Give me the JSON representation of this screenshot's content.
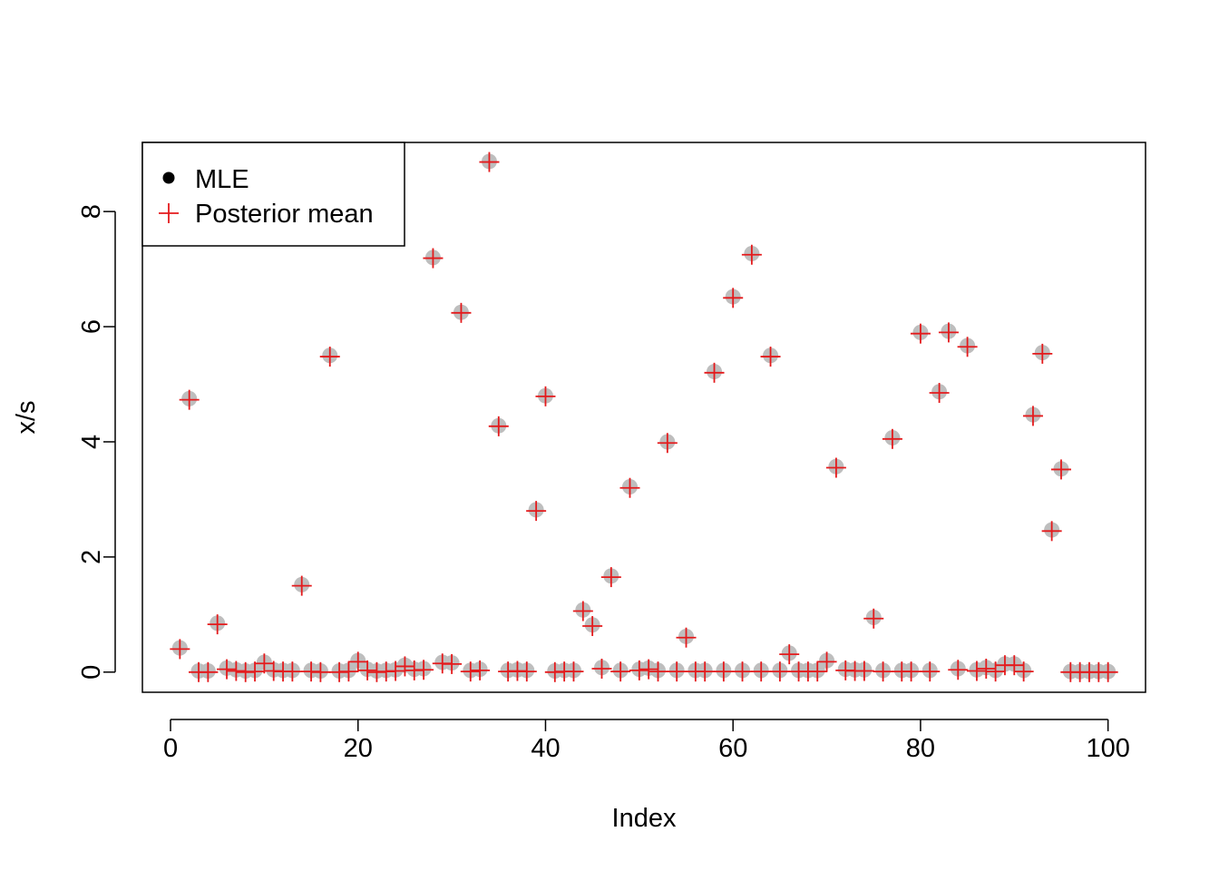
{
  "chart_data": {
    "type": "scatter",
    "xlabel": "Index",
    "ylabel": "x/s",
    "xlim": [
      -3,
      104
    ],
    "ylim": [
      -0.35,
      9.2
    ],
    "x_ticks": [
      0,
      20,
      40,
      60,
      80,
      100
    ],
    "y_ticks": [
      0,
      2,
      4,
      6,
      8
    ],
    "grid": false,
    "legend": {
      "position": "top-left",
      "items": [
        "MLE",
        "Posterior mean"
      ]
    },
    "colors": {
      "mle": "#BEBEBE",
      "posterior": "#E41A1C"
    },
    "x": [
      1,
      2,
      3,
      4,
      5,
      6,
      7,
      8,
      9,
      10,
      11,
      12,
      13,
      14,
      15,
      16,
      17,
      18,
      19,
      20,
      21,
      22,
      23,
      24,
      25,
      26,
      27,
      28,
      29,
      30,
      31,
      32,
      33,
      34,
      35,
      36,
      37,
      38,
      39,
      40,
      41,
      42,
      43,
      44,
      45,
      46,
      47,
      48,
      49,
      50,
      51,
      52,
      53,
      54,
      55,
      56,
      57,
      58,
      59,
      60,
      61,
      62,
      63,
      64,
      65,
      66,
      67,
      68,
      69,
      70,
      71,
      72,
      73,
      74,
      75,
      76,
      77,
      78,
      79,
      80,
      81,
      82,
      83,
      84,
      85,
      86,
      87,
      88,
      89,
      90,
      91,
      92,
      93,
      94,
      95,
      96,
      97,
      98,
      99,
      100
    ],
    "series": [
      {
        "name": "MLE",
        "marker": "filled-circle",
        "values": [
          0.42,
          4.75,
          0.02,
          0.02,
          0.85,
          0.07,
          0.04,
          0.02,
          0.03,
          0.17,
          0.04,
          0.03,
          0.03,
          1.52,
          0.03,
          0.02,
          5.5,
          0.02,
          0.03,
          0.2,
          0.05,
          0.02,
          0.03,
          0.04,
          0.12,
          0.05,
          0.06,
          7.2,
          0.17,
          0.16,
          6.25,
          0.03,
          0.05,
          8.87,
          4.28,
          0.03,
          0.04,
          0.03,
          2.82,
          4.8,
          0.02,
          0.03,
          0.03,
          1.08,
          0.82,
          0.08,
          1.67,
          0.03,
          3.22,
          0.05,
          0.07,
          0.03,
          4.0,
          0.03,
          0.62,
          0.03,
          0.03,
          5.22,
          0.03,
          6.52,
          0.03,
          7.27,
          0.03,
          5.5,
          0.03,
          0.33,
          0.03,
          0.03,
          0.03,
          0.2,
          3.57,
          0.05,
          0.04,
          0.04,
          0.95,
          0.03,
          4.07,
          0.03,
          0.03,
          5.9,
          0.03,
          4.87,
          5.92,
          0.06,
          5.67,
          0.04,
          0.08,
          0.03,
          0.14,
          0.14,
          0.03,
          4.47,
          5.55,
          2.47,
          3.53,
          0.01,
          0.01,
          0.01,
          0.01,
          0.01
        ]
      },
      {
        "name": "Posterior mean",
        "marker": "plus",
        "values": [
          0.4,
          4.73,
          0.0,
          0.0,
          0.83,
          0.05,
          0.02,
          0.0,
          0.01,
          0.15,
          0.02,
          0.01,
          0.01,
          1.5,
          0.01,
          0.0,
          5.48,
          0.0,
          0.01,
          0.18,
          0.03,
          0.0,
          0.01,
          0.02,
          0.1,
          0.03,
          0.04,
          7.19,
          0.15,
          0.14,
          6.24,
          0.01,
          0.03,
          8.86,
          4.27,
          0.01,
          0.02,
          0.01,
          2.8,
          4.79,
          0.0,
          0.01,
          0.01,
          1.06,
          0.8,
          0.06,
          1.65,
          0.01,
          3.2,
          0.03,
          0.05,
          0.01,
          3.98,
          0.01,
          0.6,
          0.01,
          0.01,
          5.2,
          0.01,
          6.5,
          0.01,
          7.25,
          0.01,
          5.48,
          0.01,
          0.31,
          0.01,
          0.01,
          0.01,
          0.18,
          3.55,
          0.03,
          0.02,
          0.02,
          0.93,
          0.01,
          4.05,
          0.01,
          0.01,
          5.88,
          0.01,
          4.85,
          5.9,
          0.04,
          5.65,
          0.02,
          0.06,
          0.01,
          0.12,
          0.12,
          0.01,
          4.45,
          5.53,
          2.45,
          3.52,
          0.0,
          0.0,
          0.0,
          0.0,
          0.0
        ]
      }
    ]
  }
}
